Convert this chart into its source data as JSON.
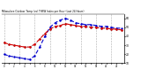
{
  "title": "Milwaukee Outdoor Temp (vs) THSW Index per Hour (Last 24 Hours)",
  "hours": [
    0,
    1,
    2,
    3,
    4,
    5,
    6,
    7,
    8,
    9,
    10,
    11,
    12,
    13,
    14,
    15,
    16,
    17,
    18,
    19,
    20,
    21,
    22,
    23
  ],
  "temp": [
    33,
    31,
    30,
    29,
    28,
    28,
    31,
    37,
    43,
    48,
    51,
    52,
    54,
    53,
    52,
    51,
    51,
    50,
    50,
    49,
    49,
    48,
    48,
    47
  ],
  "thsw": [
    20,
    18,
    17,
    16,
    15,
    14,
    18,
    28,
    40,
    50,
    55,
    58,
    60,
    58,
    55,
    54,
    53,
    53,
    52,
    51,
    51,
    50,
    49,
    49
  ],
  "hi": [
    33,
    31,
    30,
    29,
    28,
    28,
    31,
    37,
    43,
    48,
    51,
    52,
    54,
    53,
    52,
    51,
    51,
    50,
    50,
    49,
    49,
    48,
    48,
    47
  ],
  "temp_color": "#dd0000",
  "thsw_color": "#0000cc",
  "hi_color": "#111111",
  "ylim": [
    10,
    65
  ],
  "ytick_vals": [
    10,
    20,
    30,
    40,
    50,
    60
  ],
  "ytick_labels": [
    "10",
    "20",
    "30",
    "40",
    "50",
    "60"
  ],
  "background": "#ffffff",
  "grid_color": "#999999",
  "grid_positions": [
    0,
    3,
    6,
    9,
    12,
    15,
    18,
    21
  ]
}
